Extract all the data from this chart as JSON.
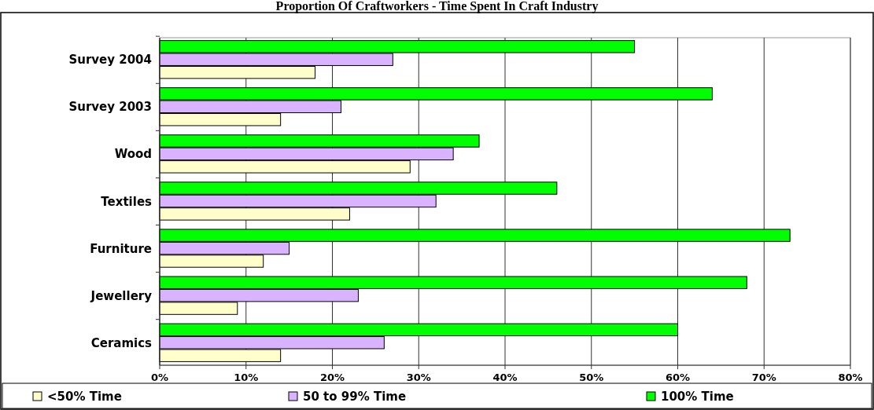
{
  "chart_data": {
    "type": "bar",
    "orientation": "horizontal",
    "title": "Proportion Of Craftworkers - Time Spent In Craft Industry",
    "categories": [
      "Survey 2004",
      "Survey 2003",
      "Wood",
      "Textiles",
      "Furniture",
      "Jewellery",
      "Ceramics"
    ],
    "series": [
      {
        "name": "<50% Time",
        "color": "#ffffcc",
        "values": [
          18,
          14,
          29,
          22,
          12,
          9,
          14
        ]
      },
      {
        "name": "50 to 99% Time",
        "color": "#d9b3ff",
        "values": [
          27,
          21,
          34,
          32,
          15,
          23,
          26
        ]
      },
      {
        "name": "100% Time",
        "color": "#00ff00",
        "values": [
          55,
          64,
          37,
          46,
          73,
          68,
          60
        ]
      }
    ],
    "xlim": [
      0,
      80
    ],
    "xticks": [
      {
        "value": 0,
        "label": "0%"
      },
      {
        "value": 10,
        "label": "10%"
      },
      {
        "value": 20,
        "label": "20%"
      },
      {
        "value": 30,
        "label": "30%"
      },
      {
        "value": 40,
        "label": "40%"
      },
      {
        "value": 50,
        "label": "50%"
      },
      {
        "value": 60,
        "label": "60%"
      },
      {
        "value": 70,
        "label": "70%"
      },
      {
        "value": 80,
        "label": "80%"
      }
    ],
    "grid": "x",
    "legend": "bottom"
  }
}
